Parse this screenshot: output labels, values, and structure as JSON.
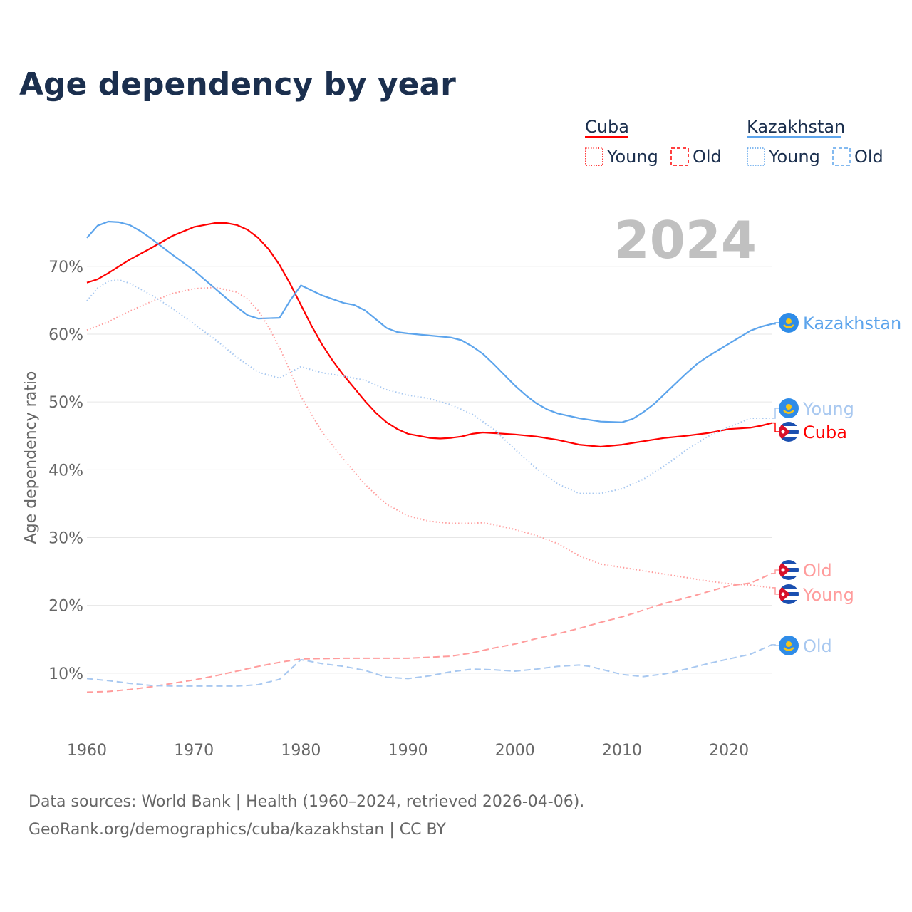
{
  "title": "Age dependency by year",
  "year_watermark": "2024",
  "legend": {
    "cuba": "Cuba",
    "kazakhstan": "Kazakhstan",
    "young": "Young",
    "old": "Old"
  },
  "colors": {
    "cuba": "#ff0000",
    "cuba_light": "#ff9c9c",
    "kaz": "#5ca4ec",
    "kaz_light": "#a8c8f0"
  },
  "end_labels": {
    "kaz_total": "Kazakhstan",
    "kaz_young": "Young",
    "cuba_total": "Cuba",
    "cuba_old": "Old",
    "cuba_young": "Young",
    "kaz_old": "Old"
  },
  "source_line1": "Data sources: World Bank | Health (1960–2024, retrieved 2026-04-06).",
  "source_line2": "GeoRank.org/demographics/cuba/kazakhstan | CC BY",
  "chart_data": {
    "type": "line",
    "title": "Age dependency by year",
    "xlabel": "",
    "ylabel": "Age dependency ratio",
    "xlim": [
      1960,
      2024
    ],
    "ylim": [
      0,
      80
    ],
    "xticks": [
      "1960",
      "1970",
      "1980",
      "1990",
      "2000",
      "2010",
      "2020"
    ],
    "yticks": [
      "10%",
      "20%",
      "30%",
      "40%",
      "50%",
      "60%",
      "70%"
    ],
    "series": [
      {
        "name": "Cuba",
        "style": "solid",
        "color": "#ff0000",
        "x": [
          1960,
          1961,
          1962,
          1964,
          1966,
          1968,
          1970,
          1972,
          1973,
          1974,
          1975,
          1976,
          1977,
          1978,
          1979,
          1980,
          1981,
          1982,
          1983,
          1984,
          1985,
          1986,
          1987,
          1988,
          1989,
          1990,
          1991,
          1992,
          1993,
          1994,
          1995,
          1996,
          1997,
          1998,
          2000,
          2002,
          2004,
          2006,
          2008,
          2010,
          2012,
          2014,
          2016,
          2018,
          2020,
          2022,
          2023,
          2024
        ],
        "y": [
          67.6,
          68.1,
          69,
          71,
          72.7,
          74.5,
          75.8,
          76.4,
          76.4,
          76.1,
          75.4,
          74.2,
          72.5,
          70.2,
          67.4,
          64.3,
          61.2,
          58.4,
          56,
          53.9,
          52,
          50.1,
          48.4,
          47,
          46,
          45.3,
          45,
          44.7,
          44.6,
          44.7,
          44.9,
          45.3,
          45.5,
          45.4,
          45.2,
          44.9,
          44.4,
          43.7,
          43.4,
          43.7,
          44.2,
          44.7,
          45,
          45.4,
          46,
          46.2,
          46.5,
          46.9
        ]
      },
      {
        "name": "Kazakhstan",
        "style": "solid",
        "color": "#5ca4ec",
        "x": [
          1960,
          1961,
          1962,
          1963,
          1964,
          1965,
          1966,
          1968,
          1970,
          1972,
          1974,
          1975,
          1976,
          1978,
          1979,
          1980,
          1982,
          1984,
          1985,
          1986,
          1987,
          1988,
          1989,
          1990,
          1992,
          1994,
          1995,
          1996,
          1997,
          1998,
          1999,
          2000,
          2001,
          2002,
          2003,
          2004,
          2006,
          2008,
          2010,
          2011,
          2012,
          2013,
          2014,
          2016,
          2017,
          2018,
          2020,
          2022,
          2023,
          2024
        ],
        "y": [
          74.2,
          76,
          76.6,
          76.5,
          76.1,
          75.2,
          74.1,
          71.7,
          69.4,
          66.7,
          64,
          62.8,
          62.3,
          62.4,
          65,
          67.2,
          65.7,
          64.6,
          64.3,
          63.5,
          62.2,
          60.9,
          60.3,
          60.1,
          59.8,
          59.5,
          59.1,
          58.2,
          57.1,
          55.6,
          54,
          52.4,
          51,
          49.8,
          48.9,
          48.3,
          47.6,
          47.1,
          47,
          47.5,
          48.5,
          49.7,
          51.2,
          54.2,
          55.6,
          56.7,
          58.6,
          60.5,
          61.1,
          61.5
        ]
      },
      {
        "name": "Cuba Young",
        "style": "dotted",
        "color": "#ff9c9c",
        "x": [
          1960,
          1962,
          1964,
          1966,
          1968,
          1970,
          1972,
          1974,
          1975,
          1976,
          1977,
          1978,
          1979,
          1980,
          1982,
          1984,
          1986,
          1988,
          1990,
          1992,
          1994,
          1996,
          1997,
          1998,
          2000,
          2002,
          2004,
          2006,
          2008,
          2010,
          2012,
          2014,
          2016,
          2018,
          2020,
          2022,
          2024
        ],
        "y": [
          60.6,
          61.8,
          63.4,
          64.8,
          66,
          66.7,
          66.9,
          66.2,
          65.2,
          63.5,
          61,
          58,
          54.5,
          50.8,
          45.5,
          41.5,
          37.8,
          34.9,
          33.2,
          32.4,
          32.1,
          32.1,
          32.2,
          31.9,
          31.2,
          30.3,
          29.1,
          27.3,
          26.1,
          25.6,
          25.1,
          24.6,
          24.1,
          23.6,
          23.2,
          23,
          22.6
        ]
      },
      {
        "name": "Cuba Old",
        "style": "dashed",
        "color": "#ff9c9c",
        "x": [
          1960,
          1962,
          1964,
          1966,
          1968,
          1970,
          1972,
          1974,
          1976,
          1978,
          1980,
          1984,
          1990,
          1994,
          1996,
          1998,
          2000,
          2002,
          2004,
          2006,
          2008,
          2010,
          2012,
          2014,
          2016,
          2018,
          2020,
          2022,
          2024
        ],
        "y": [
          7.2,
          7.3,
          7.6,
          8,
          8.5,
          9,
          9.6,
          10.3,
          11,
          11.6,
          12.1,
          12.2,
          12.2,
          12.5,
          13,
          13.7,
          14.3,
          15.1,
          15.8,
          16.6,
          17.5,
          18.3,
          19.3,
          20.3,
          21.1,
          22,
          22.9,
          23.3,
          24.7
        ]
      },
      {
        "name": "Kazakhstan Young",
        "style": "dotted",
        "color": "#a8c8f0",
        "x": [
          1960,
          1961,
          1962,
          1963,
          1964,
          1966,
          1968,
          1970,
          1972,
          1974,
          1976,
          1978,
          1979,
          1980,
          1982,
          1984,
          1986,
          1988,
          1990,
          1992,
          1994,
          1996,
          1998,
          2000,
          2002,
          2004,
          2006,
          2008,
          2010,
          2012,
          2014,
          2016,
          2018,
          2020,
          2022,
          2024
        ],
        "y": [
          64.9,
          66.8,
          67.8,
          68,
          67.5,
          65.8,
          63.8,
          61.5,
          59.2,
          56.6,
          54.4,
          53.5,
          54.4,
          55.2,
          54.3,
          53.8,
          53.2,
          51.8,
          51,
          50.5,
          49.6,
          48.2,
          46,
          43,
          40.2,
          37.9,
          36.5,
          36.5,
          37.2,
          38.6,
          40.6,
          42.9,
          44.9,
          46.3,
          47.6,
          47.6
        ]
      },
      {
        "name": "Kazakhstan Old",
        "style": "dashed",
        "color": "#a8c8f0",
        "x": [
          1960,
          1962,
          1964,
          1966,
          1968,
          1970,
          1972,
          1974,
          1976,
          1978,
          1980,
          1982,
          1984,
          1986,
          1988,
          1990,
          1992,
          1994,
          1996,
          1998,
          2000,
          2002,
          2004,
          2006,
          2007,
          2008,
          2010,
          2012,
          2014,
          2016,
          2018,
          2020,
          2022,
          2024
        ],
        "y": [
          9.2,
          8.9,
          8.5,
          8.2,
          8.1,
          8.1,
          8.1,
          8.1,
          8.3,
          9.1,
          12,
          11.4,
          11,
          10.4,
          9.4,
          9.2,
          9.6,
          10.2,
          10.6,
          10.5,
          10.3,
          10.6,
          11,
          11.2,
          11,
          10.6,
          9.8,
          9.5,
          9.9,
          10.6,
          11.4,
          12.1,
          12.8,
          14.2
        ]
      }
    ]
  }
}
